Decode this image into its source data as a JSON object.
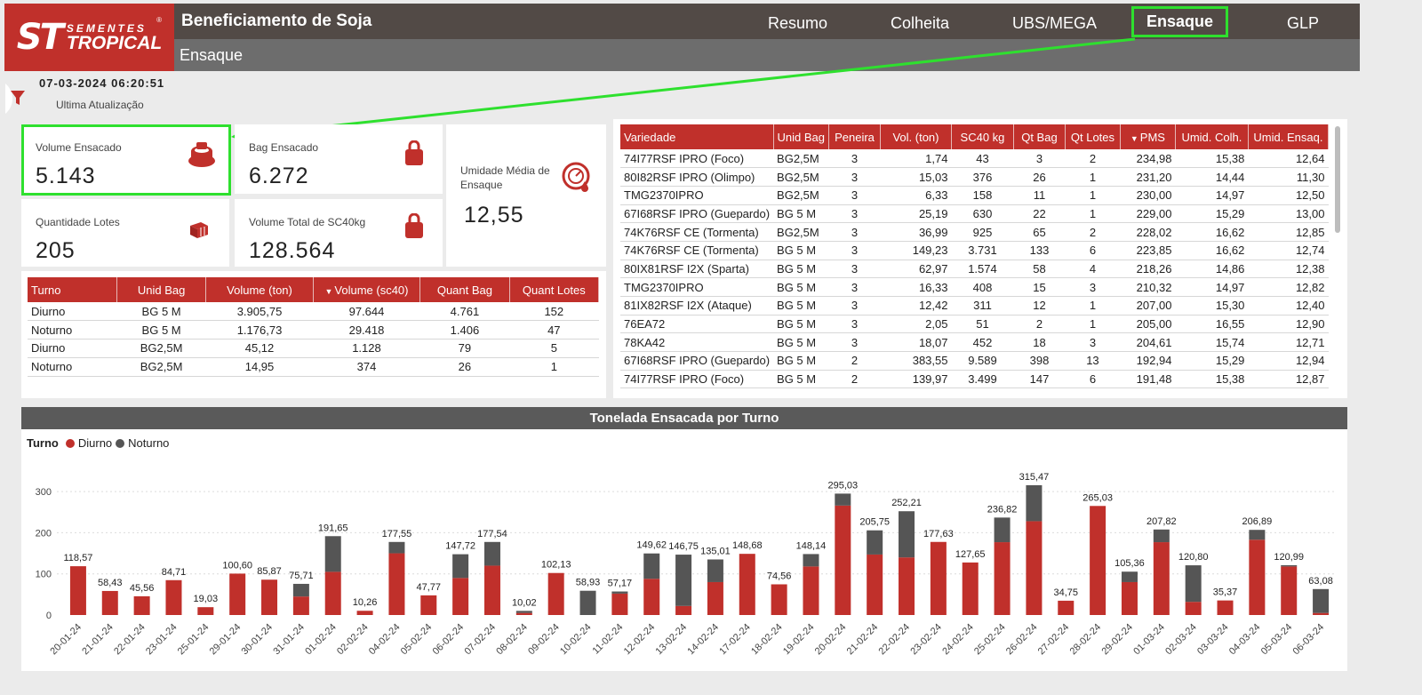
{
  "header": {
    "logo_st": "ST",
    "logo_line1": "SEMENTES",
    "logo_line2": "TROPICAL",
    "logo_reg": "®",
    "app_title": "Beneficiamento de Soja",
    "page_subtitle": "Ensaque",
    "nav": [
      "Resumo",
      "Colheita",
      "UBS/MEGA",
      "Ensaque",
      "GLP"
    ],
    "active_nav": "Ensaque",
    "accent_color": "#c0302b",
    "highlight_color": "#2ee02e"
  },
  "update": {
    "timestamp": "07-03-2024 06:20:51",
    "label": "Ultima Atualização"
  },
  "kpis": {
    "volume_ensacado": {
      "label": "Volume Ensacado",
      "value": "5.143",
      "icon": "bag-stack-icon"
    },
    "bag_ensacado": {
      "label": "Bag Ensacado",
      "value": "6.272",
      "icon": "bag-icon"
    },
    "umidade": {
      "label": "Umidade Média de Ensaque",
      "value": "12,55",
      "icon": "moisture-gauge-icon"
    },
    "quantidade_lotes": {
      "label": "Quantidade Lotes",
      "value": "205",
      "icon": "lots-icon"
    },
    "volume_sc40": {
      "label": "Volume Total de SC40kg",
      "value": "128.564",
      "icon": "bag-icon"
    }
  },
  "turno_table": {
    "headers": [
      "Turno",
      "Unid Bag",
      "Volume (ton)",
      "Volume (sc40)",
      "Quant Bag",
      "Quant Lotes"
    ],
    "rows": [
      [
        "Diurno",
        "BG 5 M",
        "3.905,75",
        "97.644",
        "4.761",
        "152"
      ],
      [
        "Noturno",
        "BG 5 M",
        "1.176,73",
        "29.418",
        "1.406",
        "47"
      ],
      [
        "Diurno",
        "BG2,5M",
        "45,12",
        "1.128",
        "79",
        "5"
      ],
      [
        "Noturno",
        "BG2,5M",
        "14,95",
        "374",
        "26",
        "1"
      ]
    ]
  },
  "variedade_table": {
    "headers": [
      "Variedade",
      "Unid Bag",
      "Peneira",
      "Vol. (ton)",
      "SC40 kg",
      "Qt Bag",
      "Qt Lotes",
      "PMS",
      "Umid. Colh.",
      "Umid. Ensaq."
    ],
    "rows": [
      [
        "74I77RSF IPRO (Foco)",
        "BG2,5M",
        "3",
        "1,74",
        "43",
        "3",
        "2",
        "234,98",
        "15,38",
        "12,64"
      ],
      [
        "80I82RSF IPRO (Olimpo)",
        "BG2,5M",
        "3",
        "15,03",
        "376",
        "26",
        "1",
        "231,20",
        "14,44",
        "11,30"
      ],
      [
        "TMG2370IPRO",
        "BG2,5M",
        "3",
        "6,33",
        "158",
        "11",
        "1",
        "230,00",
        "14,97",
        "12,50"
      ],
      [
        "67I68RSF IPRO (Guepardo)",
        "BG 5 M",
        "3",
        "25,19",
        "630",
        "22",
        "1",
        "229,00",
        "15,29",
        "13,00"
      ],
      [
        "74K76RSF CE (Tormenta)",
        "BG2,5M",
        "3",
        "36,99",
        "925",
        "65",
        "2",
        "228,02",
        "16,62",
        "12,85"
      ],
      [
        "74K76RSF CE (Tormenta)",
        "BG 5 M",
        "3",
        "149,23",
        "3.731",
        "133",
        "6",
        "223,85",
        "16,62",
        "12,74"
      ],
      [
        "80IX81RSF I2X (Sparta)",
        "BG 5 M",
        "3",
        "62,97",
        "1.574",
        "58",
        "4",
        "218,26",
        "14,86",
        "12,38"
      ],
      [
        "TMG2370IPRO",
        "BG 5 M",
        "3",
        "16,33",
        "408",
        "15",
        "3",
        "210,32",
        "14,97",
        "12,82"
      ],
      [
        "81IX82RSF I2X (Ataque)",
        "BG 5 M",
        "3",
        "12,42",
        "311",
        "12",
        "1",
        "207,00",
        "15,30",
        "12,40"
      ],
      [
        "76EA72",
        "BG 5 M",
        "3",
        "2,05",
        "51",
        "2",
        "1",
        "205,00",
        "16,55",
        "12,90"
      ],
      [
        "78KA42",
        "BG 5 M",
        "3",
        "18,07",
        "452",
        "18",
        "3",
        "204,61",
        "15,74",
        "12,71"
      ],
      [
        "67I68RSF IPRO (Guepardo)",
        "BG 5 M",
        "2",
        "383,55",
        "9.589",
        "398",
        "13",
        "192,94",
        "15,29",
        "12,94"
      ],
      [
        "74I77RSF IPRO (Foco)",
        "BG 5 M",
        "2",
        "139,97",
        "3.499",
        "147",
        "6",
        "191,48",
        "15,38",
        "12,87"
      ]
    ]
  },
  "chart_data": {
    "type": "bar",
    "title": "Tonelada Ensacada por Turno",
    "legend_title": "Turno",
    "legend_position": "top-left",
    "stacked": true,
    "ylim": [
      0,
      320
    ],
    "yticks": [
      0,
      100,
      200,
      300
    ],
    "grid": true,
    "categories": [
      "20-01-24",
      "21-01-24",
      "22-01-24",
      "23-01-24",
      "25-01-24",
      "29-01-24",
      "30-01-24",
      "31-01-24",
      "01-02-24",
      "02-02-24",
      "04-02-24",
      "05-02-24",
      "06-02-24",
      "07-02-24",
      "08-02-24",
      "09-02-24",
      "10-02-24",
      "11-02-24",
      "12-02-24",
      "13-02-24",
      "14-02-24",
      "17-02-24",
      "18-02-24",
      "19-02-24",
      "20-02-24",
      "21-02-24",
      "22-02-24",
      "23-02-24",
      "24-02-24",
      "25-02-24",
      "26-02-24",
      "27-02-24",
      "28-02-24",
      "29-02-24",
      "01-03-24",
      "02-03-24",
      "03-03-24",
      "04-03-24",
      "05-03-24",
      "06-03-24"
    ],
    "totals": [
      "118,57",
      "58,43",
      "45,56",
      "84,71",
      "19,03",
      "100,60",
      "85,87",
      "75,71",
      "191,65",
      "10,26",
      "177,55",
      "47,77",
      "147,72",
      "177,54",
      "10,02",
      "102,13",
      "58,93",
      "57,17",
      "149,62",
      "146,75",
      "135,01",
      "148,68",
      "74,56",
      "148,14",
      "295,03",
      "205,75",
      "252,21",
      "177,63",
      "127,65",
      "236,82",
      "315,47",
      "34,75",
      "265,03",
      "105,36",
      "207,82",
      "120,80",
      "35,37",
      "206,89",
      "120,99",
      "63,08"
    ],
    "series": [
      {
        "name": "Diurno",
        "color": "#c0302b",
        "values": [
          118.57,
          58.43,
          45.56,
          84.71,
          19.03,
          100.6,
          85.87,
          45,
          105,
          10.26,
          150,
          47.77,
          90,
          120,
          5,
          102.13,
          0,
          52,
          88,
          22,
          80,
          148.68,
          74.56,
          118,
          266,
          147,
          140,
          177.63,
          127.65,
          177,
          228,
          34.75,
          265.03,
          80,
          177,
          32,
          35.37,
          183,
          118,
          5
        ]
      },
      {
        "name": "Noturno",
        "color": "#555555",
        "values": [
          0,
          0,
          0,
          0,
          0,
          0,
          0,
          30.71,
          86.65,
          0,
          27.55,
          0,
          57.72,
          57.54,
          5.02,
          0,
          58.93,
          5.17,
          61.62,
          124.75,
          55.01,
          0,
          0,
          30.14,
          29.03,
          58.75,
          112.21,
          0,
          0,
          59.82,
          87.47,
          0,
          0,
          25.36,
          30.82,
          88.8,
          0,
          23.89,
          2.99,
          58.08
        ]
      }
    ]
  }
}
